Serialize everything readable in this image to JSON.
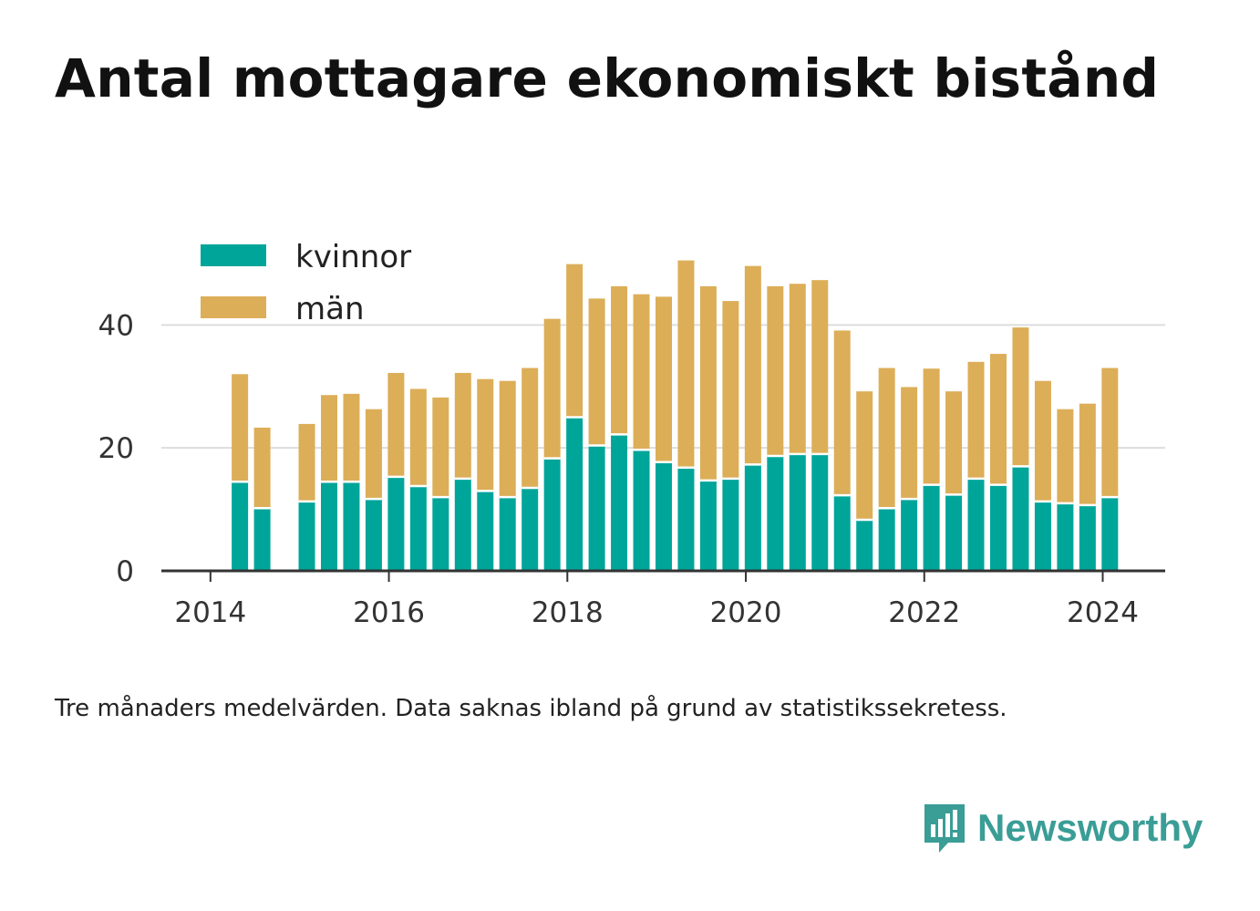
{
  "title": "Antal mottagare ekonomiskt bistånd",
  "note": "Tre månaders medelvärden. Data saknas ibland på grund av statistikssekretess.",
  "brand": {
    "name": "Newsworthy",
    "icon": "newsworthy-logo-icon",
    "color": "#3a9d96"
  },
  "chart_data": {
    "type": "bar",
    "stacked": true,
    "title": "",
    "xlabel": "",
    "ylabel": "",
    "x": [
      2014.33,
      2014.58,
      2015.08,
      2015.33,
      2015.58,
      2015.83,
      2016.08,
      2016.33,
      2016.58,
      2016.83,
      2017.08,
      2017.33,
      2017.58,
      2017.83,
      2018.08,
      2018.33,
      2018.58,
      2018.83,
      2019.08,
      2019.33,
      2019.58,
      2019.83,
      2020.08,
      2020.33,
      2020.58,
      2020.83,
      2021.08,
      2021.33,
      2021.58,
      2021.83,
      2022.08,
      2022.33,
      2022.58,
      2022.83,
      2023.08,
      2023.33,
      2023.58,
      2023.83,
      2024.08
    ],
    "series": [
      {
        "name": "kvinnor",
        "color": "#00a59a",
        "values": [
          14.5,
          10.2,
          11.3,
          14.5,
          14.5,
          11.7,
          15.3,
          13.8,
          12.0,
          15.0,
          13.0,
          12.0,
          13.5,
          18.3,
          25.0,
          20.4,
          22.2,
          19.7,
          17.7,
          16.8,
          14.7,
          15.0,
          17.3,
          18.7,
          19.0,
          19.0,
          12.3,
          8.3,
          10.2,
          11.7,
          14.0,
          12.4,
          15.0,
          14.0,
          17.0,
          11.3,
          11.0,
          10.7,
          12.0
        ]
      },
      {
        "name": "män",
        "color": "#dcae58",
        "values": [
          17.5,
          13.1,
          12.6,
          14.1,
          14.3,
          14.6,
          16.9,
          15.8,
          16.2,
          17.2,
          18.2,
          18.9,
          19.5,
          22.7,
          24.9,
          23.9,
          24.1,
          25.3,
          26.9,
          33.7,
          31.6,
          28.9,
          32.3,
          27.6,
          27.7,
          28.3,
          26.8,
          20.9,
          22.8,
          18.2,
          18.9,
          16.8,
          19.0,
          21.3,
          22.6,
          19.6,
          15.3,
          16.5,
          21.0
        ]
      }
    ],
    "xticks": [
      2014,
      2016,
      2018,
      2020,
      2022,
      2024
    ],
    "xtick_labels": [
      "2014",
      "2016",
      "2018",
      "2020",
      "2022",
      "2024"
    ],
    "yticks": [
      0,
      20,
      40
    ],
    "ytick_labels": [
      "0",
      "20",
      "40"
    ],
    "ylim": [
      0,
      54
    ],
    "xlim": [
      2013.45,
      2024.7
    ],
    "grid": true,
    "legend": {
      "placement": "top-left",
      "entries": [
        "kvinnor",
        "män"
      ]
    }
  }
}
